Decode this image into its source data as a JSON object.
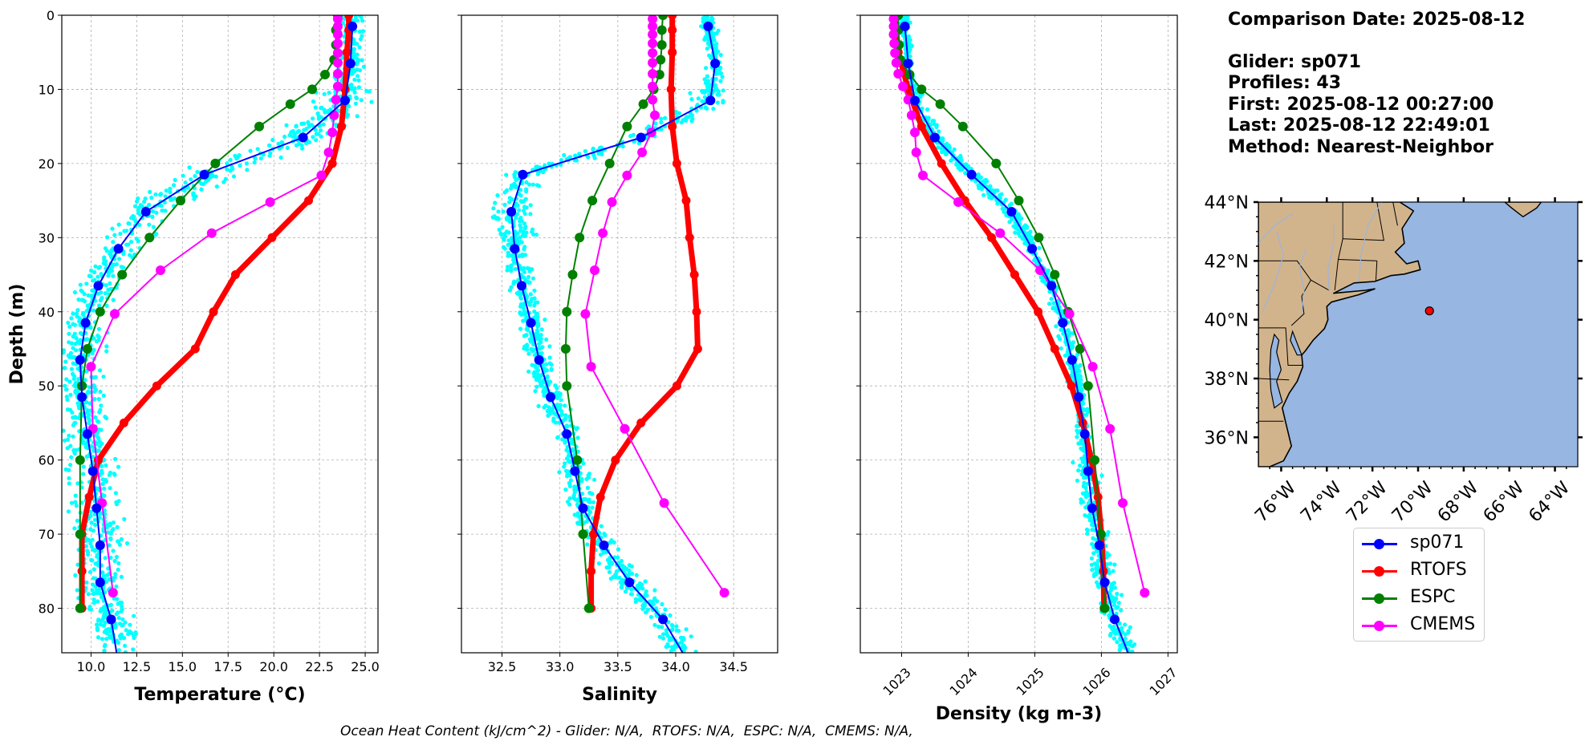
{
  "info": {
    "comparison_date": "Comparison Date: 2025-08-12",
    "glider": "Glider: sp071",
    "profiles": "Profiles: 43",
    "first": "First: 2025-08-12 00:27:00",
    "last": "Last: 2025-08-12 22:49:01",
    "method": "Method: Nearest-Neighbor"
  },
  "footnote": "Ocean Heat Content (kJ/cm^2) - Glider: N/A,  RTOFS: N/A,  ESPC: N/A,  CMEMS: N/A,",
  "colors": {
    "sp071": "#0000ff",
    "RTOFS": "#ff0000",
    "ESPC": "#008000",
    "CMEMS": "#ff00ff",
    "scatter": "#00ffff",
    "land": "#d2b48c",
    "ocean": "#97b6e1"
  },
  "legend": [
    {
      "name": "sp071",
      "color": "#0000ff"
    },
    {
      "name": "RTOFS",
      "color": "#ff0000"
    },
    {
      "name": "ESPC",
      "color": "#008000"
    },
    {
      "name": "CMEMS",
      "color": "#ff00ff"
    }
  ],
  "chart_data": [
    {
      "type": "line",
      "xlabel": "Temperature (°C)",
      "ylabel": "Depth (m)",
      "xlim": [
        8.4,
        25.7
      ],
      "ylim": [
        86,
        0
      ],
      "xticks": [
        "10.0",
        "12.5",
        "15.0",
        "17.5",
        "20.0",
        "22.5",
        "25.0"
      ],
      "yticks": [
        "0",
        "10",
        "20",
        "30",
        "40",
        "50",
        "60",
        "70",
        "80"
      ],
      "grid": true,
      "series": [
        {
          "name": "sp071",
          "depth": [
            1.5,
            6.5,
            11.5,
            16.5,
            21.5,
            26.5,
            31.5,
            36.5,
            41.5,
            46.5,
            51.5,
            56.5,
            61.5,
            66.5,
            71.5,
            76.5,
            81.5,
            86
          ],
          "values": [
            24.3,
            24.2,
            23.9,
            21.6,
            16.2,
            13.0,
            11.5,
            10.4,
            9.7,
            9.4,
            9.5,
            9.8,
            10.1,
            10.3,
            10.5,
            10.5,
            11.1,
            11.4
          ]
        },
        {
          "name": "RTOFS",
          "depth": [
            0,
            2,
            5,
            10,
            15,
            20,
            25,
            30,
            35,
            40,
            45,
            50,
            55,
            60,
            65,
            70,
            75,
            80
          ],
          "values": [
            24.1,
            24.1,
            24.0,
            23.9,
            23.7,
            23.2,
            21.9,
            19.9,
            17.9,
            16.7,
            15.7,
            13.6,
            11.8,
            10.4,
            9.9,
            9.5,
            9.5,
            9.5
          ]
        },
        {
          "name": "ESPC",
          "depth": [
            0,
            2,
            4,
            6,
            8,
            10,
            12,
            15,
            20,
            25,
            30,
            35,
            40,
            45,
            50,
            60,
            70,
            80
          ],
          "values": [
            23.5,
            23.4,
            23.4,
            23.3,
            22.8,
            22.1,
            20.9,
            19.2,
            16.8,
            14.9,
            13.2,
            11.7,
            10.5,
            9.8,
            9.5,
            9.4,
            9.4,
            9.4
          ]
        },
        {
          "name": "CMEMS",
          "depth": [
            0.5,
            1.5,
            2.6,
            3.8,
            5.1,
            6.4,
            7.9,
            9.6,
            11.4,
            13.5,
            15.8,
            18.5,
            21.6,
            25.2,
            29.4,
            34.4,
            40.3,
            47.4,
            55.8,
            65.8,
            77.9
          ],
          "values": [
            23.5,
            23.5,
            23.5,
            23.5,
            23.5,
            23.5,
            23.5,
            23.5,
            23.4,
            23.3,
            23.2,
            23.0,
            22.6,
            19.8,
            16.6,
            13.8,
            11.3,
            10.0,
            10.1,
            10.6,
            11.2
          ]
        }
      ]
    },
    {
      "type": "line",
      "xlabel": "Salinity",
      "ylabel": "",
      "xlim": [
        32.15,
        34.88
      ],
      "ylim": [
        86,
        0
      ],
      "xticks": [
        "32.5",
        "33.0",
        "33.5",
        "34.0",
        "34.5"
      ],
      "grid": true,
      "series": [
        {
          "name": "sp071",
          "depth": [
            1.5,
            6.5,
            11.5,
            16.5,
            21.5,
            26.5,
            31.5,
            36.5,
            41.5,
            46.5,
            51.5,
            56.5,
            61.5,
            66.5,
            71.5,
            76.5,
            81.5,
            86
          ],
          "values": [
            34.28,
            34.34,
            34.3,
            33.7,
            32.68,
            32.58,
            32.61,
            32.67,
            32.75,
            32.82,
            32.92,
            33.06,
            33.13,
            33.2,
            33.38,
            33.6,
            33.89,
            34.06
          ]
        },
        {
          "name": "RTOFS",
          "depth": [
            0,
            2,
            5,
            10,
            15,
            20,
            25,
            30,
            35,
            40,
            45,
            50,
            55,
            60,
            65,
            70,
            75,
            80
          ],
          "values": [
            33.97,
            33.97,
            33.97,
            33.96,
            33.97,
            34.01,
            34.09,
            34.12,
            34.16,
            34.18,
            34.19,
            34.01,
            33.7,
            33.48,
            33.35,
            33.29,
            33.27,
            33.27
          ]
        },
        {
          "name": "ESPC",
          "depth": [
            0,
            2,
            4,
            6,
            8,
            10,
            12,
            15,
            20,
            25,
            30,
            35,
            40,
            45,
            50,
            60,
            70,
            80
          ],
          "values": [
            33.89,
            33.88,
            33.88,
            33.87,
            33.86,
            33.81,
            33.72,
            33.58,
            33.43,
            33.28,
            33.17,
            33.11,
            33.06,
            33.05,
            33.06,
            33.15,
            33.2,
            33.25
          ]
        },
        {
          "name": "CMEMS",
          "depth": [
            0.5,
            1.5,
            2.6,
            3.8,
            5.1,
            6.4,
            7.9,
            9.6,
            11.4,
            13.5,
            15.8,
            18.5,
            21.6,
            25.2,
            29.4,
            34.4,
            40.3,
            47.4,
            55.8,
            65.8,
            77.9
          ],
          "values": [
            33.8,
            33.8,
            33.8,
            33.8,
            33.8,
            33.8,
            33.8,
            33.8,
            33.8,
            33.82,
            33.79,
            33.71,
            33.58,
            33.45,
            33.37,
            33.3,
            33.22,
            33.27,
            33.56,
            33.9,
            34.42
          ]
        }
      ]
    },
    {
      "type": "line",
      "xlabel": "Density (kg m-3)",
      "ylabel": "",
      "xlim": [
        1022.38,
        1027.14
      ],
      "ylim": [
        86,
        0
      ],
      "xticks": [
        "1023",
        "1024",
        "1025",
        "1026",
        "1027"
      ],
      "grid": true,
      "series": [
        {
          "name": "sp071",
          "depth": [
            1.5,
            6.5,
            11.5,
            16.5,
            21.5,
            26.5,
            31.5,
            36.5,
            41.5,
            46.5,
            51.5,
            56.5,
            61.5,
            66.5,
            71.5,
            76.5,
            81.5,
            86
          ],
          "values": [
            1023.05,
            1023.1,
            1023.2,
            1023.5,
            1024.05,
            1024.65,
            1024.96,
            1025.25,
            1025.42,
            1025.56,
            1025.66,
            1025.75,
            1025.8,
            1025.86,
            1025.97,
            1026.05,
            1026.2,
            1026.4
          ]
        },
        {
          "name": "RTOFS",
          "depth": [
            0,
            2,
            5,
            10,
            15,
            20,
            25,
            30,
            35,
            40,
            45,
            50,
            55,
            60,
            65,
            70,
            75,
            80
          ],
          "values": [
            1022.92,
            1022.92,
            1022.95,
            1023.1,
            1023.3,
            1023.6,
            1023.95,
            1024.35,
            1024.7,
            1025.05,
            1025.3,
            1025.55,
            1025.72,
            1025.85,
            1025.95,
            1026.0,
            1026.03,
            1026.04
          ]
        },
        {
          "name": "ESPC",
          "depth": [
            0,
            2,
            4,
            6,
            8,
            10,
            12,
            15,
            20,
            25,
            30,
            35,
            40,
            45,
            50,
            60,
            70,
            80
          ],
          "values": [
            1022.95,
            1022.95,
            1022.96,
            1022.98,
            1023.12,
            1023.3,
            1023.58,
            1023.92,
            1024.42,
            1024.76,
            1025.06,
            1025.3,
            1025.5,
            1025.68,
            1025.8,
            1025.9,
            1025.99,
            1026.05
          ]
        },
        {
          "name": "CMEMS",
          "depth": [
            0.5,
            1.5,
            2.6,
            3.8,
            5.1,
            6.4,
            7.9,
            9.6,
            11.4,
            13.5,
            15.8,
            18.5,
            21.6,
            25.2,
            29.4,
            34.4,
            40.3,
            47.4,
            55.8,
            65.8,
            77.9
          ],
          "values": [
            1022.88,
            1022.88,
            1022.88,
            1022.89,
            1022.9,
            1022.92,
            1022.95,
            1023.02,
            1023.1,
            1023.15,
            1023.2,
            1023.22,
            1023.32,
            1023.85,
            1024.48,
            1025.08,
            1025.52,
            1025.87,
            1026.13,
            1026.32,
            1026.65
          ]
        }
      ]
    },
    {
      "type": "map",
      "lon_ticks": [
        "76°W",
        "74°W",
        "72°W",
        "70°W",
        "68°W",
        "66°W",
        "64°W"
      ],
      "lat_ticks": [
        "44°N",
        "42°N",
        "40°N",
        "38°N",
        "36°N"
      ],
      "lon_range": [
        -77,
        -63
      ],
      "lat_range": [
        35,
        44
      ],
      "marker": {
        "lon": -69.5,
        "lat": 40.3
      }
    }
  ]
}
